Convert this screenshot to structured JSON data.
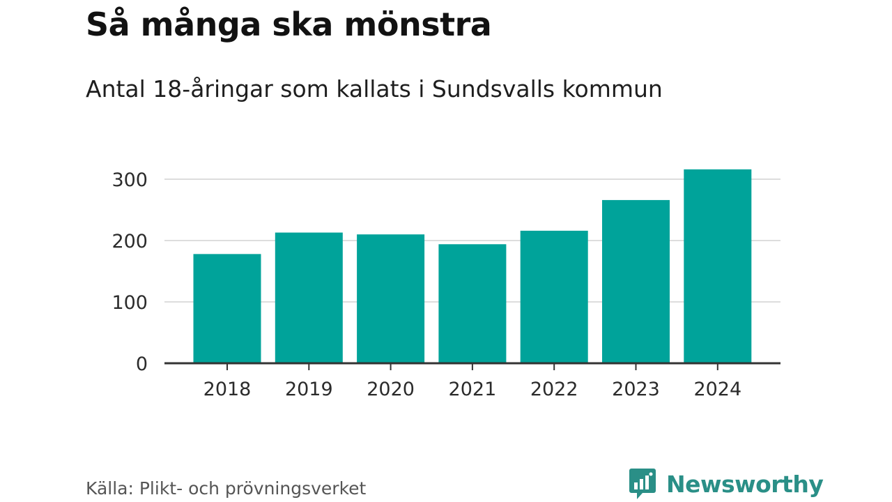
{
  "title": "Så många ska mönstra",
  "subtitle": "Antal 18-åringar som kallats i Sundsvalls kommun",
  "source": "Källa: Plikt- och prövningsverket",
  "brand": {
    "name": "Newsworthy",
    "icon": "bar-chart-logo-icon",
    "color": "#2a8f87"
  },
  "colors": {
    "bar": "#00a39a",
    "grid": "#dddddd",
    "axis": "#333333"
  },
  "chart_data": {
    "type": "bar",
    "title": "Så många ska mönstra",
    "subtitle": "Antal 18-åringar som kallats i Sundsvalls kommun",
    "categories": [
      "2018",
      "2019",
      "2020",
      "2021",
      "2022",
      "2023",
      "2024"
    ],
    "values": [
      178,
      213,
      210,
      194,
      216,
      266,
      316
    ],
    "xlabel": "",
    "ylabel": "",
    "ylim": [
      0,
      300
    ],
    "yticks": [
      0,
      100,
      200,
      300
    ],
    "grid": true,
    "legend": "none"
  }
}
